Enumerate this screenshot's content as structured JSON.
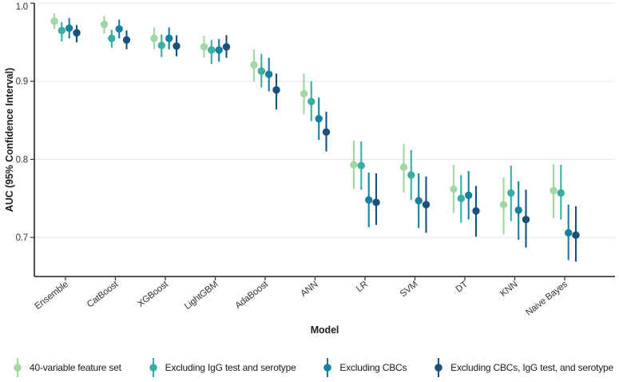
{
  "chart_data": {
    "type": "scatter",
    "subtype": "pointrange-dodged",
    "title": "",
    "xlabel": "Model",
    "ylabel": "AUC (95% Confidence Interval)",
    "ylim": [
      0.65,
      1.0
    ],
    "yticks": [
      0.7,
      0.8,
      0.9,
      1.0
    ],
    "ytick_labels": [
      "0.7",
      "0.8",
      "0.9",
      "1.0"
    ],
    "grid": "horizontal",
    "legend_position": "bottom",
    "categories": [
      "Ensemble",
      "CatBoost",
      "XGBoost",
      "LightGBM",
      "AdaBoost",
      "ANN",
      "LR",
      "SVM",
      "DT",
      "KNN",
      "Naive Bayes"
    ],
    "series": [
      {
        "name": "40-variable feature set",
        "color": "#9FD7A5",
        "auc": [
          0.977,
          0.973,
          0.955,
          0.944,
          0.921,
          0.884,
          0.793,
          0.79,
          0.762,
          0.742,
          0.76
        ],
        "ci_low": [
          0.967,
          0.961,
          0.941,
          0.93,
          0.9,
          0.858,
          0.762,
          0.758,
          0.731,
          0.704,
          0.725
        ],
        "ci_high": [
          0.987,
          0.984,
          0.969,
          0.958,
          0.941,
          0.91,
          0.824,
          0.82,
          0.793,
          0.777,
          0.794
        ]
      },
      {
        "name": "Excluding IgG test and serotype",
        "color": "#38AFA2",
        "auc": [
          0.965,
          0.955,
          0.946,
          0.94,
          0.913,
          0.874,
          0.792,
          0.78,
          0.75,
          0.757,
          0.757
        ],
        "ci_low": [
          0.951,
          0.943,
          0.931,
          0.922,
          0.892,
          0.849,
          0.761,
          0.748,
          0.719,
          0.721,
          0.723
        ],
        "ci_high": [
          0.976,
          0.966,
          0.96,
          0.953,
          0.935,
          0.9,
          0.823,
          0.812,
          0.78,
          0.792,
          0.793
        ]
      },
      {
        "name": "Excluding CBCs",
        "color": "#19809F",
        "auc": [
          0.968,
          0.967,
          0.955,
          0.94,
          0.909,
          0.852,
          0.748,
          0.747,
          0.754,
          0.735,
          0.706
        ],
        "ci_low": [
          0.955,
          0.955,
          0.941,
          0.925,
          0.887,
          0.825,
          0.713,
          0.712,
          0.723,
          0.697,
          0.671
        ],
        "ci_high": [
          0.981,
          0.979,
          0.969,
          0.954,
          0.93,
          0.879,
          0.783,
          0.782,
          0.785,
          0.772,
          0.742
        ]
      },
      {
        "name": "Excluding CBCs, IgG test, and serotype",
        "color": "#18517C",
        "auc": [
          0.962,
          0.953,
          0.945,
          0.944,
          0.889,
          0.835,
          0.745,
          0.742,
          0.734,
          0.723,
          0.703
        ],
        "ci_low": [
          0.95,
          0.941,
          0.932,
          0.93,
          0.864,
          0.81,
          0.716,
          0.706,
          0.701,
          0.687,
          0.669
        ],
        "ci_high": [
          0.972,
          0.965,
          0.959,
          0.959,
          0.91,
          0.861,
          0.782,
          0.778,
          0.766,
          0.761,
          0.74
        ]
      }
    ]
  }
}
